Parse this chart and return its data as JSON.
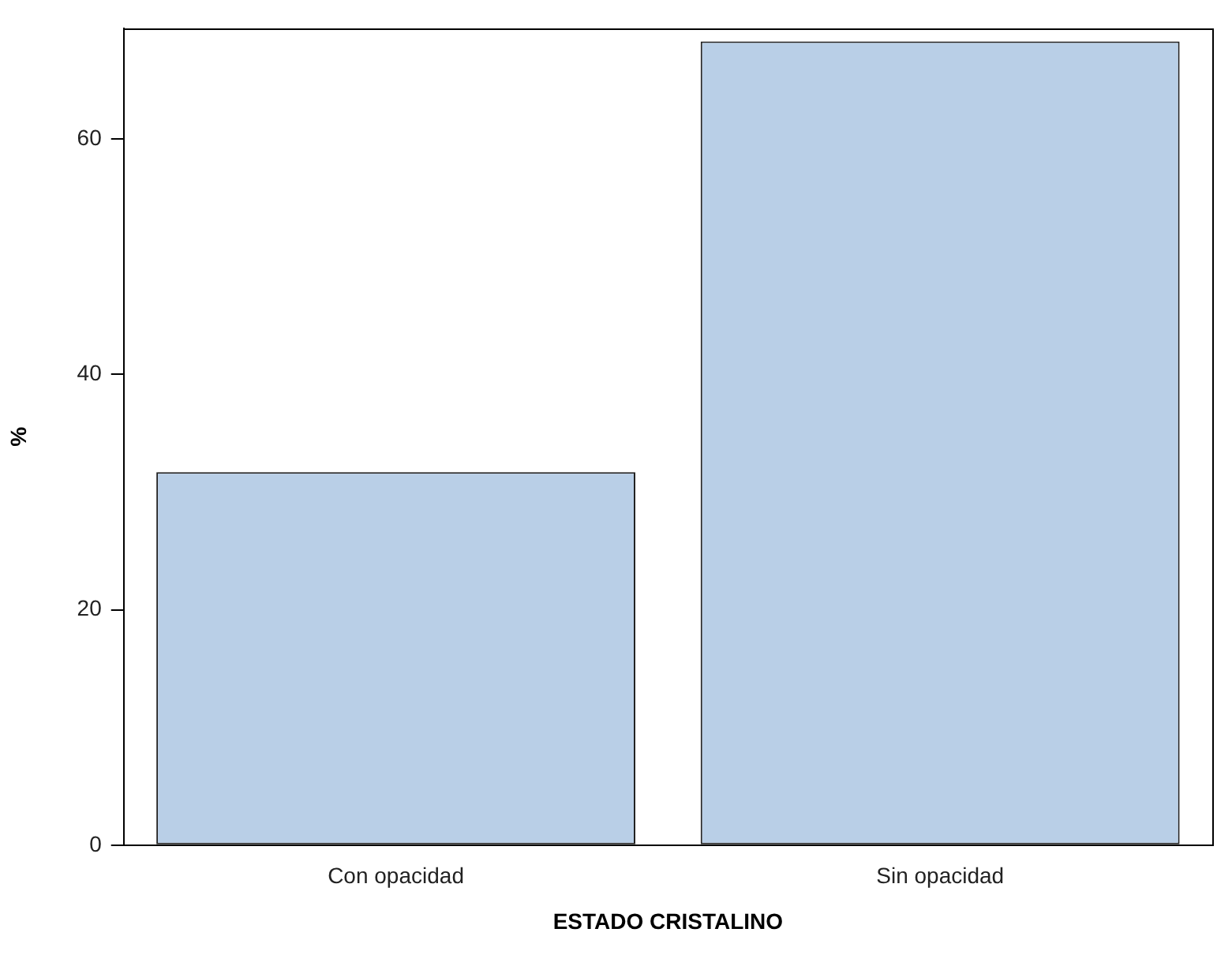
{
  "chart_data": {
    "type": "bar",
    "xlabel": "ESTADO CRISTALINO",
    "ylabel": "%",
    "categories": [
      "Con opacidad",
      "Sin opacidad"
    ],
    "values": [
      31.7,
      68.3
    ],
    "color": "#b9cfe7",
    "ylim": [
      0,
      69.4
    ],
    "yticks": [
      0,
      20,
      40,
      60
    ],
    "grid": false,
    "legend": false
  }
}
